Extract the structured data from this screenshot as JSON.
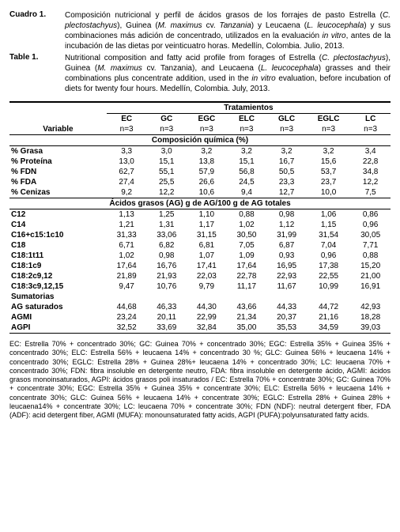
{
  "caption_es_label": "Cuadro 1.",
  "caption_es_prefix": "Composición nutricional y perfil de ácidos grasos de los forrajes de pasto Estrella (",
  "caption_es_it1": "C. plectostachyus",
  "caption_es_mid1": "), Guinea (",
  "caption_es_it2": "M. maximus",
  "caption_es_mid2": " cv. ",
  "caption_es_it3": "Tanzania",
  "caption_es_mid3": ") y Leucaena (",
  "caption_es_it4": "L. leucocephala",
  "caption_es_mid4": ") y sus combinaciones más adición de concentrado, utilizados en la evaluación ",
  "caption_es_it5": "in vitro",
  "caption_es_suffix": ", antes de la incubación de las dietas por veinticuatro horas.  Medellín, Colombia. Julio, 2013.",
  "caption_en_label": "Table 1.",
  "caption_en_prefix": "Nutritional composition and fatty acid profile from forages of Estrella (",
  "caption_en_it1": "C. plectostachyus",
  "caption_en_mid1": "), Guinea (",
  "caption_en_it2": "M. maximus",
  "caption_en_mid2": " cv. Tanzania), and Leucaena (",
  "caption_en_it3": "L. leucocephala",
  "caption_en_mid3": ") grasses and their combinations plus concentrate addition, used in the ",
  "caption_en_it4": "in vitro",
  "caption_en_suffix": " evaluation, before incubation of diets for twenty four hours. Medellín, Colombia. July, 2013.",
  "treat_header": "Tratamientos",
  "var_header": "Variable",
  "treatments": [
    "EC",
    "GC",
    "EGC",
    "ELC",
    "GLC",
    "EGLC",
    "LC"
  ],
  "n_row": [
    "n=3",
    "n=3",
    "n=3",
    "n=3",
    "n=3",
    "n=3",
    "n=3"
  ],
  "section1": "Composición química (%)",
  "rows1": [
    {
      "label": "% Grasa",
      "vals": [
        "3,3",
        "3,0",
        "3,2",
        "3,2",
        "3,2",
        "3,2",
        "3,4"
      ]
    },
    {
      "label": "% Proteína",
      "vals": [
        "13,0",
        "15,1",
        "13,8",
        "15,1",
        "16,7",
        "15,6",
        "22,8"
      ]
    },
    {
      "label": "% FDN",
      "vals": [
        "62,7",
        "55,1",
        "57,9",
        "56,8",
        "50,5",
        "53,7",
        "34,8"
      ]
    },
    {
      "label": "% FDA",
      "vals": [
        "27,4",
        "25,5",
        "26,6",
        "24,5",
        "23,3",
        "23,7",
        "12,2"
      ]
    },
    {
      "label": "% Cenizas",
      "vals": [
        "9,2",
        "12,2",
        "10,6",
        "9,4",
        "12,7",
        "10,0",
        "7,5"
      ]
    }
  ],
  "section2": "Ácidos grasos (AG) g de AG/100 g de AG totales",
  "rows2": [
    {
      "label": "C12",
      "vals": [
        "1,13",
        "1,25",
        "1,10",
        "0,88",
        "0,98",
        "1,06",
        "0,86"
      ]
    },
    {
      "label": "C14",
      "vals": [
        "1,21",
        "1,31",
        "1,17",
        "1,02",
        "1,12",
        "1,15",
        "0,96"
      ]
    },
    {
      "label": "C16+c15:1c10",
      "vals": [
        "31,33",
        "33,06",
        "31,15",
        "30,50",
        "31,99",
        "31,54",
        "30,05"
      ]
    },
    {
      "label": "C18",
      "vals": [
        "6,71",
        "6,82",
        "6,81",
        "7,05",
        "6,87",
        "7,04",
        "7,71"
      ]
    },
    {
      "label": "C18:1t11",
      "vals": [
        "1,02",
        "0,98",
        "1,07",
        "1,09",
        "0,93",
        "0,96",
        "0,88"
      ]
    },
    {
      "label": "C18:1c9",
      "vals": [
        "17,64",
        "16,76",
        "17,41",
        "17,64",
        "16,95",
        "17,38",
        "15,20"
      ]
    },
    {
      "label": "C18:2c9,12",
      "vals": [
        "21,89",
        "21,93",
        "22,03",
        "22,78",
        "22,93",
        "22,55",
        "21,00"
      ]
    },
    {
      "label": "C18:3c9,12,15",
      "vals": [
        "9,47",
        "10,76",
        "9,79",
        "11,17",
        "11,67",
        "10,99",
        "16,91"
      ]
    }
  ],
  "sumatorias": "Sumatorias",
  "rows3": [
    {
      "label": "AG saturados",
      "vals": [
        "44,68",
        "46,33",
        "44,30",
        "43,66",
        "44,33",
        "44,72",
        "42,93"
      ]
    },
    {
      "label": "AGMI",
      "vals": [
        "23,24",
        "20,11",
        "22,99",
        "21,34",
        "20,37",
        "21,16",
        "18,28"
      ]
    },
    {
      "label": "AGPI",
      "vals": [
        "32,52",
        "33,69",
        "32,84",
        "35,00",
        "35,53",
        "34,59",
        "39,03"
      ]
    }
  ],
  "footnote": "EC: Estrella 70% + concentrado 30%; GC: Guinea 70% + concentrado 30%; EGC: Estrella  35% + Guinea 35% + concentrado 30%; ELC: Estrella 56% + leucaena 14% + concentrado 30 %; GLC: Guinea 56% + leucaena 14% + concentrado 30%; EGLC: Estrella 28% + Guinea 28%+ leucaena 14% + concentrado 30%; LC: leucaena 70% + concentrado 30%; FDN: fibra insoluble en detergente neutro, FDA: fibra insoluble en detergente ácido, AGMI: ácidos grasos monoinsaturados, AGPI: ácidos grasos poli insaturados / EC: Estrella 70% + concentrate 30%; GC: Guinea 70% + concentrate 30%; EGC: Estrella  35% + Guinea 35% + concentrate 30%; ELC: Estrella 56% + leucaena 14% + concentrate 30%; GLC: Guinea 56% + leucaena 14% + concentrate 30%; EGLC: Estrella 28% + Guinea 28% + leucaena14% + concentrate 30%; LC: leucaena 70% + concentrate 30%; FDN (NDF): neutral detergent fiber, FDA (ADF): acid detergent fiber, AGMI (MUFA): monounsaturated fatty acids, AGPI (PUFA):polyunsaturated fatty acids."
}
